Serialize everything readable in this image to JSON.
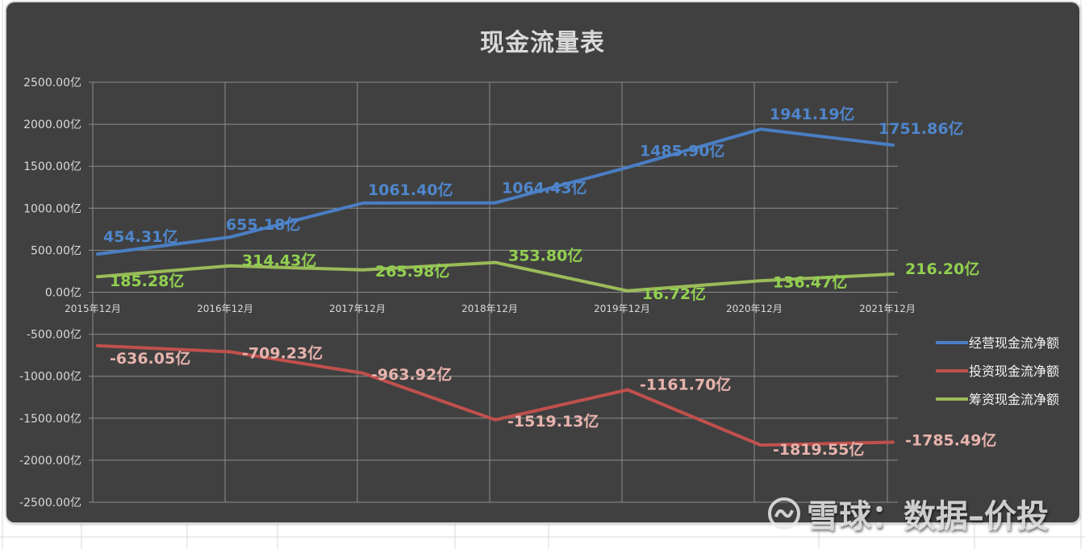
{
  "chart_data": {
    "type": "line",
    "title": "现金流量表",
    "xlabel": "",
    "ylabel": "",
    "categories": [
      "2015年12月",
      "2016年12月",
      "2017年12月",
      "2018年12月",
      "2019年12月",
      "2020年12月",
      "2021年12月"
    ],
    "series": [
      {
        "name": "经营现金流净额",
        "color": "#4a7ec4",
        "label_color": "#4f86cc",
        "values": [
          454.31,
          655.18,
          1061.4,
          1064.43,
          1485.9,
          1941.19,
          1751.86
        ],
        "labels": [
          "454.31亿",
          "655.18亿",
          "1061.40亿",
          "1064.43亿",
          "1485.90亿",
          "1941.19亿",
          "1751.86亿"
        ]
      },
      {
        "name": "投资现金流净额",
        "color": "#c0504d",
        "label_color": "#e8b3ad",
        "values": [
          -636.05,
          -709.23,
          -963.92,
          -1519.13,
          -1161.7,
          -1819.55,
          -1785.49
        ],
        "labels": [
          "-636.05亿",
          "-709.23亿",
          "-963.92亿",
          "-1519.13亿",
          "-1161.70亿",
          "-1819.55亿",
          "-1785.49亿"
        ]
      },
      {
        "name": "筹资现金流净额",
        "color": "#9bbb59",
        "label_color": "#92d050",
        "values": [
          185.28,
          314.43,
          265.98,
          353.8,
          16.72,
          136.47,
          216.2
        ],
        "labels": [
          "185.28亿",
          "314.43亿",
          "265.98亿",
          "353.80亿",
          "16.72亿",
          "136.47亿",
          "216.20亿"
        ]
      }
    ],
    "yticks": [
      "2500.00亿",
      "2000.00亿",
      "1500.00亿",
      "1000.00亿",
      "500.00亿",
      "0.00亿",
      "-500.00亿",
      "-1000.00亿",
      "-1500.00亿",
      "-2000.00亿",
      "-2500.00亿"
    ],
    "ylim": [
      -2500,
      2500
    ],
    "grid": true,
    "legend_position": "right"
  },
  "watermark": {
    "text": "雪球：数据–价投"
  },
  "colors": {
    "background": "#404040",
    "grid": "#8c8c8c",
    "text": "#d9d9d9"
  }
}
